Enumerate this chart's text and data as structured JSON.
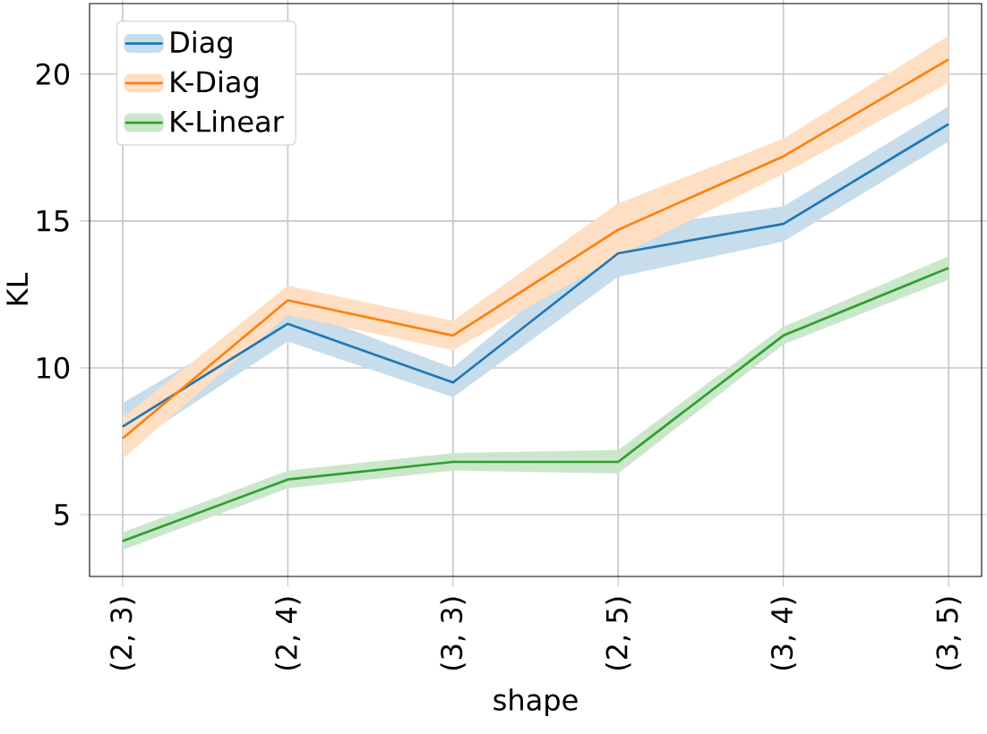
{
  "chart_data": {
    "type": "line",
    "xlabel": "shape",
    "ylabel": "KL",
    "ylim": [
      2.9,
      22.4
    ],
    "yticks": [
      5,
      10,
      15,
      20
    ],
    "categories": [
      "(2, 3)",
      "(2, 4)",
      "(3, 3)",
      "(2, 5)",
      "(3, 4)",
      "(3, 5)"
    ],
    "grid": true,
    "legend": "top left",
    "series": [
      {
        "name": "Diag",
        "color": "#1f77b4",
        "values": [
          8.0,
          11.5,
          9.5,
          13.9,
          14.9,
          18.3
        ],
        "lower": [
          7.2,
          10.9,
          9.0,
          13.1,
          14.3,
          17.7
        ],
        "upper": [
          8.8,
          12.1,
          10.0,
          14.7,
          15.5,
          18.9
        ]
      },
      {
        "name": "K-Diag",
        "color": "#ff7f0e",
        "values": [
          7.6,
          12.3,
          11.1,
          14.7,
          17.2,
          20.5
        ],
        "lower": [
          6.9,
          11.8,
          10.6,
          13.8,
          16.6,
          19.7
        ],
        "upper": [
          8.3,
          12.8,
          11.6,
          15.6,
          17.8,
          21.3
        ]
      },
      {
        "name": "K-Linear",
        "color": "#2ca02c",
        "values": [
          4.1,
          6.2,
          6.8,
          6.8,
          11.1,
          13.4
        ],
        "lower": [
          3.8,
          5.9,
          6.5,
          6.4,
          10.8,
          13.0
        ],
        "upper": [
          4.4,
          6.5,
          7.1,
          7.2,
          11.4,
          13.8
        ]
      }
    ]
  }
}
